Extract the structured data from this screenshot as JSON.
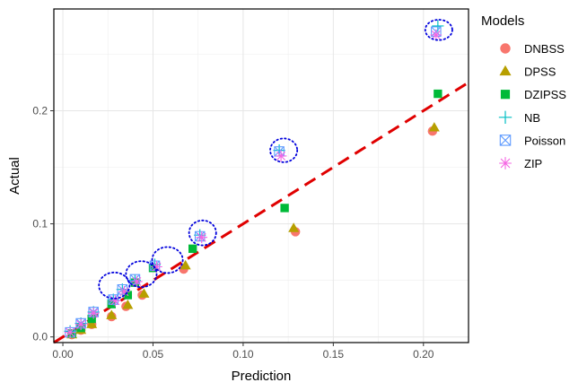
{
  "chart_data": {
    "type": "scatter",
    "xlabel": "Prediction",
    "ylabel": "Actual",
    "xlim": [
      -0.005,
      0.225
    ],
    "ylim": [
      -0.005,
      0.29
    ],
    "x_ticks": [
      0.0,
      0.05,
      0.1,
      0.15,
      0.2
    ],
    "x_tick_labels": [
      "0.00",
      "0.05",
      "0.10",
      "0.15",
      "0.20"
    ],
    "y_ticks": [
      0.0,
      0.1,
      0.2
    ],
    "y_tick_labels": [
      "0.0",
      "0.1",
      "0.2"
    ],
    "grid": true,
    "legend": {
      "title": "Models",
      "placement": "right"
    },
    "reference_line": {
      "style": "dashed",
      "color": "#e00000",
      "x": [
        -0.005,
        0.225
      ],
      "y": [
        -0.005,
        0.225
      ]
    },
    "series": [
      {
        "name": "DNBSS",
        "marker": "circle",
        "color": "#f8766d",
        "x": [
          0.005,
          0.01,
          0.016,
          0.027,
          0.035,
          0.044,
          0.067,
          0.129,
          0.205
        ],
        "y": [
          0.002,
          0.006,
          0.011,
          0.018,
          0.027,
          0.037,
          0.06,
          0.093,
          0.182
        ]
      },
      {
        "name": "DPSS",
        "marker": "triangle",
        "color": "#b79f00",
        "x": [
          0.005,
          0.01,
          0.016,
          0.027,
          0.036,
          0.045,
          0.068,
          0.128,
          0.206
        ],
        "y": [
          0.002,
          0.006,
          0.011,
          0.019,
          0.028,
          0.038,
          0.063,
          0.096,
          0.185
        ]
      },
      {
        "name": "DZIPSS",
        "marker": "square",
        "color": "#00ba38",
        "x": [
          0.005,
          0.01,
          0.016,
          0.027,
          0.036,
          0.04,
          0.05,
          0.072,
          0.123,
          0.208
        ],
        "y": [
          0.003,
          0.008,
          0.016,
          0.029,
          0.037,
          0.048,
          0.061,
          0.078,
          0.114,
          0.215
        ]
      },
      {
        "name": "NB",
        "marker": "plus",
        "color": "#00bfc4",
        "x": [
          0.004,
          0.01,
          0.017,
          0.028,
          0.033,
          0.04,
          0.051,
          0.076,
          0.12,
          0.208
        ],
        "y": [
          0.005,
          0.012,
          0.022,
          0.033,
          0.042,
          0.05,
          0.064,
          0.09,
          0.165,
          0.275
        ]
      },
      {
        "name": "Poisson",
        "marker": "square-x",
        "color": "#619cff",
        "x": [
          0.004,
          0.01,
          0.017,
          0.028,
          0.033,
          0.04,
          0.051,
          0.076,
          0.12,
          0.207
        ],
        "y": [
          0.004,
          0.012,
          0.022,
          0.033,
          0.042,
          0.051,
          0.063,
          0.089,
          0.164,
          0.27
        ]
      },
      {
        "name": "ZIP",
        "marker": "asterisk",
        "color": "#f564e3",
        "x": [
          0.004,
          0.01,
          0.017,
          0.029,
          0.034,
          0.041,
          0.052,
          0.077,
          0.121,
          0.207
        ],
        "y": [
          0.004,
          0.011,
          0.021,
          0.032,
          0.04,
          0.049,
          0.062,
          0.088,
          0.16,
          0.267
        ]
      }
    ],
    "highlight_ellipses": [
      {
        "x": 0.0285,
        "y": 0.0455,
        "rx": 0.0085,
        "ry": 0.0115
      },
      {
        "x": 0.0435,
        "y": 0.0555,
        "rx": 0.0085,
        "ry": 0.0115
      },
      {
        "x": 0.058,
        "y": 0.068,
        "rx": 0.0085,
        "ry": 0.0115
      },
      {
        "x": 0.0775,
        "y": 0.092,
        "rx": 0.0075,
        "ry": 0.011
      },
      {
        "x": 0.1225,
        "y": 0.165,
        "rx": 0.0075,
        "ry": 0.0105
      },
      {
        "x": 0.2085,
        "y": 0.2715,
        "rx": 0.0075,
        "ry": 0.009
      }
    ]
  }
}
